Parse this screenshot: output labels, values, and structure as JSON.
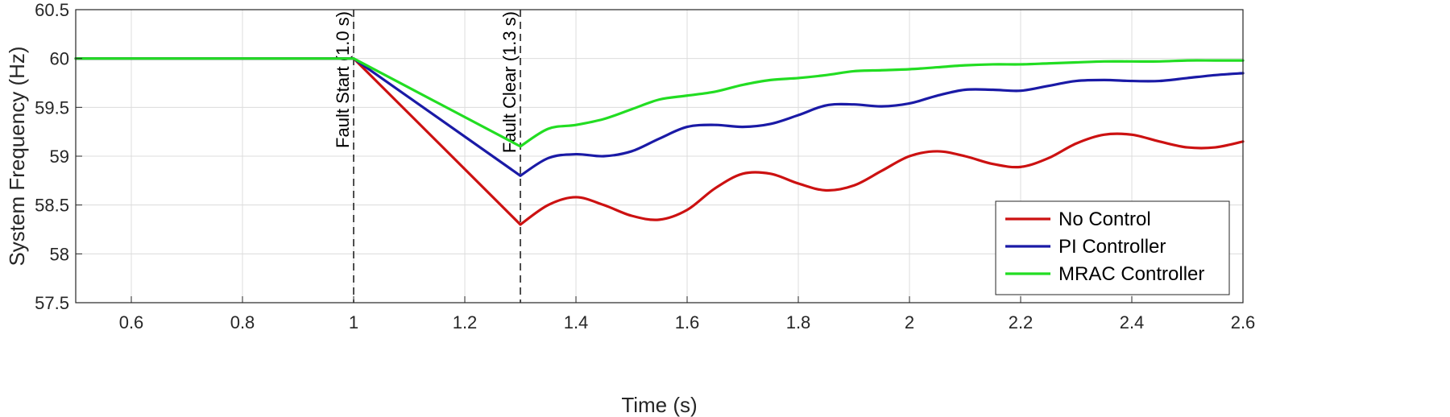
{
  "chart_data": {
    "type": "line",
    "title": "",
    "xlabel": "Time (s)",
    "ylabel": "System Frequency (Hz)",
    "xlim": [
      0.5,
      2.6
    ],
    "ylim": [
      57.5,
      60.5
    ],
    "xticks": [
      0.6,
      0.8,
      1.0,
      1.2,
      1.4,
      1.6,
      1.8,
      2.0,
      2.2,
      2.4,
      2.6
    ],
    "xtick_labels": [
      "0.6",
      "0.8",
      "1",
      "1.2",
      "1.4",
      "1.6",
      "1.8",
      "2",
      "2.2",
      "2.4",
      "2.6"
    ],
    "yticks": [
      57.5,
      58,
      58.5,
      59,
      59.5,
      60,
      60.5
    ],
    "ytick_labels": [
      "57.5",
      "58",
      "58.5",
      "59",
      "59.5",
      "60",
      "60.5"
    ],
    "grid": true,
    "legend_position": "bottom-right",
    "annotations": [
      {
        "x": 1.0,
        "label": "Fault Start (1.0 s)"
      },
      {
        "x": 1.3,
        "label": "Fault Clear (1.3 s)"
      }
    ],
    "series": [
      {
        "name": "No Control",
        "color": "#cc1111",
        "x": [
          0.5,
          1.0,
          1.3,
          1.35,
          1.4,
          1.45,
          1.5,
          1.55,
          1.6,
          1.65,
          1.7,
          1.75,
          1.8,
          1.85,
          1.9,
          1.95,
          2.0,
          2.05,
          2.1,
          2.15,
          2.2,
          2.25,
          2.3,
          2.35,
          2.4,
          2.45,
          2.5,
          2.55,
          2.6
        ],
        "y": [
          60.0,
          60.0,
          58.3,
          58.5,
          58.58,
          58.5,
          58.39,
          58.35,
          58.45,
          58.67,
          58.82,
          58.82,
          58.72,
          58.65,
          58.7,
          58.85,
          59.0,
          59.05,
          59.0,
          58.92,
          58.89,
          58.98,
          59.13,
          59.22,
          59.22,
          59.15,
          59.09,
          59.09,
          59.15
        ]
      },
      {
        "name": "PI Controller",
        "color": "#1a1aa6",
        "x": [
          0.5,
          1.0,
          1.3,
          1.35,
          1.4,
          1.45,
          1.5,
          1.55,
          1.6,
          1.65,
          1.7,
          1.75,
          1.8,
          1.85,
          1.9,
          1.95,
          2.0,
          2.05,
          2.1,
          2.15,
          2.2,
          2.25,
          2.3,
          2.35,
          2.4,
          2.45,
          2.5,
          2.55,
          2.6
        ],
        "y": [
          60.0,
          60.0,
          58.8,
          58.98,
          59.02,
          59.0,
          59.05,
          59.18,
          59.3,
          59.32,
          59.3,
          59.33,
          59.42,
          59.52,
          59.53,
          59.51,
          59.54,
          59.62,
          59.68,
          59.68,
          59.67,
          59.72,
          59.77,
          59.78,
          59.77,
          59.77,
          59.8,
          59.83,
          59.85
        ]
      },
      {
        "name": "MRAC Controller",
        "color": "#22dd22",
        "x": [
          0.5,
          1.0,
          1.3,
          1.35,
          1.4,
          1.45,
          1.5,
          1.55,
          1.6,
          1.65,
          1.7,
          1.75,
          1.8,
          1.85,
          1.9,
          1.95,
          2.0,
          2.05,
          2.1,
          2.15,
          2.2,
          2.25,
          2.3,
          2.35,
          2.4,
          2.45,
          2.5,
          2.55,
          2.6
        ],
        "y": [
          60.0,
          60.0,
          59.1,
          59.28,
          59.32,
          59.38,
          59.48,
          59.58,
          59.62,
          59.66,
          59.73,
          59.78,
          59.8,
          59.83,
          59.87,
          59.88,
          59.89,
          59.91,
          59.93,
          59.94,
          59.94,
          59.95,
          59.96,
          59.97,
          59.97,
          59.97,
          59.98,
          59.98,
          59.98
        ]
      }
    ]
  }
}
